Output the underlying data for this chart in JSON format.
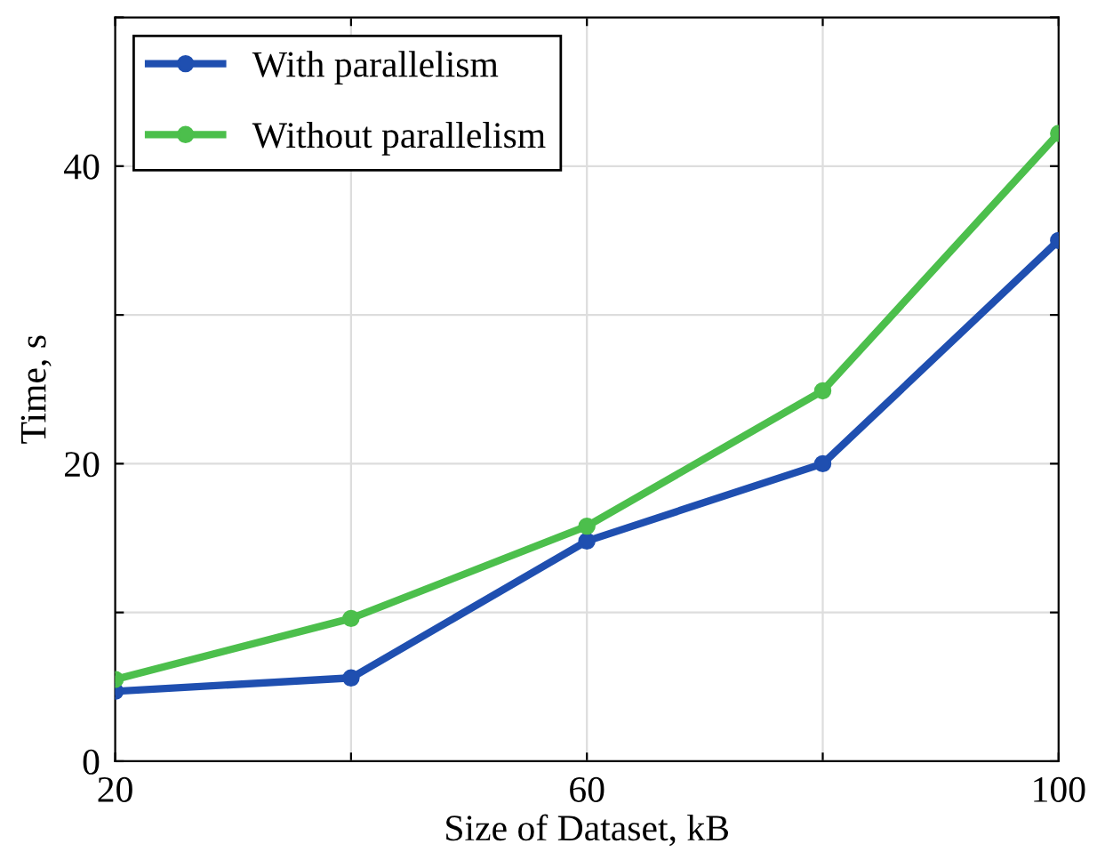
{
  "chart_data": {
    "type": "line",
    "xlabel": "Size of Dataset, kB",
    "ylabel": "Time, s",
    "x": [
      20,
      40,
      60,
      80,
      100
    ],
    "series": [
      {
        "name": "With parallelism",
        "color": "#1f4fb0",
        "values": [
          4.7,
          5.6,
          14.8,
          20,
          35
        ]
      },
      {
        "name": "Without parallelism",
        "color": "#4cbf4c",
        "values": [
          5.5,
          9.6,
          15.8,
          24.9,
          42.2
        ]
      }
    ],
    "xlim": [
      20,
      100
    ],
    "ylim": [
      0,
      50
    ],
    "xticks": [
      20,
      {
        "value": 40,
        "label": null
      },
      60,
      {
        "value": 80,
        "label": null
      },
      100
    ],
    "yticks": [
      0,
      {
        "value": 10,
        "label": null
      },
      20,
      {
        "value": 30,
        "label": null
      },
      40,
      {
        "value": 50,
        "label": null
      }
    ],
    "grid": true,
    "legend": "top left",
    "marker": "circle",
    "line_style": "solid"
  }
}
